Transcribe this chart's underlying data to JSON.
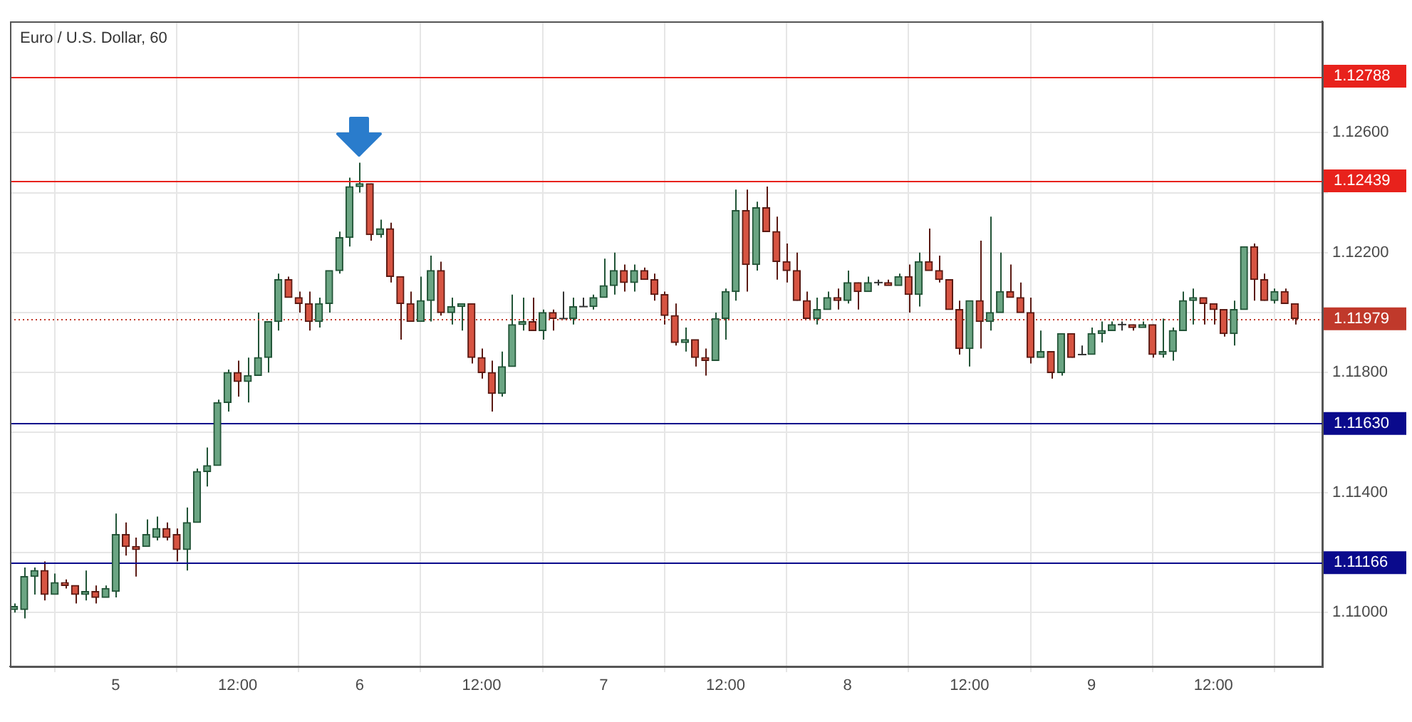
{
  "chart_data": {
    "type": "candlestick",
    "title": "Euro / U.S. Dollar, 60",
    "categories": [
      null,
      null,
      null,
      null,
      null,
      null,
      null,
      null,
      null,
      null,
      "5",
      null,
      null,
      null,
      null,
      null,
      null,
      null,
      null,
      null,
      null,
      null,
      "12:00",
      null,
      null,
      null,
      null,
      null,
      null,
      null,
      null,
      null,
      null,
      null,
      "6",
      null,
      null,
      null,
      null,
      null,
      null,
      null,
      null,
      null,
      null,
      null,
      "12:00",
      null,
      null,
      null,
      null,
      null,
      null,
      null,
      null,
      null,
      null,
      null,
      "7",
      null,
      null,
      null,
      null,
      null,
      null,
      null,
      null,
      null,
      null,
      null,
      "12:00",
      null,
      null,
      null,
      null,
      null,
      null,
      null,
      null,
      null,
      null,
      null,
      "8",
      null,
      null,
      null,
      null,
      null,
      null,
      null,
      null,
      null,
      null,
      null,
      "12:00",
      null,
      null,
      null,
      null,
      null,
      null,
      null,
      null,
      null,
      null,
      null,
      "9",
      null,
      null,
      null,
      null,
      null,
      null,
      null,
      null,
      null,
      null,
      null,
      "12:00",
      null,
      null,
      null,
      null,
      null,
      null,
      null,
      null
    ],
    "ohlc": [
      [
        1.1101,
        1.1103,
        1.11,
        1.1102
      ],
      [
        1.1101,
        1.1115,
        1.1098,
        1.1112
      ],
      [
        1.1112,
        1.1115,
        1.1106,
        1.1114
      ],
      [
        1.1114,
        1.1117,
        1.1104,
        1.1106
      ],
      [
        1.1106,
        1.1113,
        1.1106,
        1.111
      ],
      [
        1.111,
        1.1111,
        1.1108,
        1.1109
      ],
      [
        1.1109,
        1.1109,
        1.1103,
        1.1106
      ],
      [
        1.1106,
        1.1114,
        1.1104,
        1.1107
      ],
      [
        1.1107,
        1.1109,
        1.1103,
        1.1105
      ],
      [
        1.1105,
        1.1109,
        1.1105,
        1.1108
      ],
      [
        1.1107,
        1.1133,
        1.1105,
        1.1126
      ],
      [
        1.1126,
        1.113,
        1.1119,
        1.1122
      ],
      [
        1.1122,
        1.1125,
        1.1112,
        1.1121
      ],
      [
        1.1122,
        1.1131,
        1.1122,
        1.1126
      ],
      [
        1.1125,
        1.1132,
        1.1124,
        1.1128
      ],
      [
        1.1128,
        1.113,
        1.1124,
        1.1125
      ],
      [
        1.1126,
        1.1128,
        1.1117,
        1.1121
      ],
      [
        1.1121,
        1.1135,
        1.1114,
        1.113
      ],
      [
        1.113,
        1.1148,
        1.113,
        1.1147
      ],
      [
        1.1147,
        1.1155,
        1.1142,
        1.1149
      ],
      [
        1.1149,
        1.1171,
        1.1149,
        1.117
      ],
      [
        1.117,
        1.1181,
        1.1167,
        1.118
      ],
      [
        1.118,
        1.1184,
        1.1172,
        1.1177
      ],
      [
        1.1177,
        1.1185,
        1.117,
        1.1179
      ],
      [
        1.1179,
        1.12,
        1.1179,
        1.1185
      ],
      [
        1.1185,
        1.1197,
        1.118,
        1.1197
      ],
      [
        1.1197,
        1.1213,
        1.1194,
        1.1211
      ],
      [
        1.1211,
        1.1212,
        1.1205,
        1.1205
      ],
      [
        1.1205,
        1.1207,
        1.12,
        1.1203
      ],
      [
        1.1203,
        1.1207,
        1.1194,
        1.1197
      ],
      [
        1.1197,
        1.1205,
        1.1195,
        1.1203
      ],
      [
        1.1203,
        1.1214,
        1.12,
        1.1214
      ],
      [
        1.1214,
        1.1227,
        1.1213,
        1.1225
      ],
      [
        1.1225,
        1.1245,
        1.1222,
        1.1242
      ],
      [
        1.1242,
        1.125,
        1.124,
        1.1243
      ],
      [
        1.1243,
        1.1243,
        1.1224,
        1.1226
      ],
      [
        1.1226,
        1.1231,
        1.1225,
        1.1228
      ],
      [
        1.1228,
        1.123,
        1.121,
        1.1212
      ],
      [
        1.1212,
        1.1212,
        1.1191,
        1.1203
      ],
      [
        1.1203,
        1.1207,
        1.1197,
        1.1197
      ],
      [
        1.1197,
        1.1212,
        1.1197,
        1.1204
      ],
      [
        1.1204,
        1.1219,
        1.1197,
        1.1214
      ],
      [
        1.1214,
        1.1217,
        1.1199,
        1.12
      ],
      [
        1.12,
        1.1205,
        1.1196,
        1.1202
      ],
      [
        1.1202,
        1.1203,
        1.1194,
        1.1203
      ],
      [
        1.1203,
        1.1203,
        1.1183,
        1.1185
      ],
      [
        1.1185,
        1.1188,
        1.1178,
        1.118
      ],
      [
        1.118,
        1.1184,
        1.1167,
        1.1173
      ],
      [
        1.1173,
        1.1187,
        1.1172,
        1.1182
      ],
      [
        1.1182,
        1.1206,
        1.1182,
        1.1196
      ],
      [
        1.1196,
        1.1205,
        1.1194,
        1.1197
      ],
      [
        1.1197,
        1.1205,
        1.1194,
        1.1194
      ],
      [
        1.1194,
        1.1201,
        1.1191,
        1.12
      ],
      [
        1.12,
        1.1201,
        1.1194,
        1.1198
      ],
      [
        1.1198,
        1.1207,
        1.1198,
        1.1198
      ],
      [
        1.1198,
        1.1205,
        1.1196,
        1.1202
      ],
      [
        1.1202,
        1.1205,
        1.1202,
        1.1202
      ],
      [
        1.1202,
        1.1206,
        1.1201,
        1.1205
      ],
      [
        1.1205,
        1.1218,
        1.1205,
        1.1209
      ],
      [
        1.1209,
        1.122,
        1.1206,
        1.1214
      ],
      [
        1.1214,
        1.1216,
        1.1207,
        1.121
      ],
      [
        1.121,
        1.1216,
        1.1207,
        1.1214
      ],
      [
        1.1214,
        1.1215,
        1.1211,
        1.1211
      ],
      [
        1.1211,
        1.1213,
        1.1204,
        1.1206
      ],
      [
        1.1206,
        1.1207,
        1.1196,
        1.1199
      ],
      [
        1.1199,
        1.1203,
        1.1189,
        1.119
      ],
      [
        1.119,
        1.1195,
        1.1187,
        1.1191
      ],
      [
        1.1191,
        1.1191,
        1.1182,
        1.1185
      ],
      [
        1.1185,
        1.1188,
        1.1179,
        1.1184
      ],
      [
        1.1184,
        1.12,
        1.1184,
        1.1198
      ],
      [
        1.1198,
        1.1208,
        1.1191,
        1.1207
      ],
      [
        1.1207,
        1.1241,
        1.1204,
        1.1234
      ],
      [
        1.1234,
        1.1241,
        1.1207,
        1.1216
      ],
      [
        1.1216,
        1.1237,
        1.1214,
        1.1235
      ],
      [
        1.1235,
        1.1242,
        1.1227,
        1.1227
      ],
      [
        1.1227,
        1.1232,
        1.1211,
        1.1217
      ],
      [
        1.1217,
        1.1223,
        1.121,
        1.1214
      ],
      [
        1.1214,
        1.122,
        1.1204,
        1.1204
      ],
      [
        1.1204,
        1.1207,
        1.1198,
        1.1198
      ],
      [
        1.1198,
        1.1205,
        1.1196,
        1.1201
      ],
      [
        1.1201,
        1.1207,
        1.1201,
        1.1205
      ],
      [
        1.1205,
        1.1208,
        1.1201,
        1.1204
      ],
      [
        1.1204,
        1.1214,
        1.1203,
        1.121
      ],
      [
        1.121,
        1.121,
        1.1201,
        1.1207
      ],
      [
        1.1207,
        1.1212,
        1.1207,
        1.121
      ],
      [
        1.121,
        1.1211,
        1.1209,
        1.121
      ],
      [
        1.121,
        1.1211,
        1.1209,
        1.1209
      ],
      [
        1.1209,
        1.1213,
        1.1209,
        1.1212
      ],
      [
        1.1212,
        1.1216,
        1.12,
        1.1206
      ],
      [
        1.1206,
        1.122,
        1.1202,
        1.1217
      ],
      [
        1.1217,
        1.1228,
        1.1214,
        1.1214
      ],
      [
        1.1214,
        1.1219,
        1.121,
        1.1211
      ],
      [
        1.1211,
        1.1211,
        1.1201,
        1.1201
      ],
      [
        1.1201,
        1.1204,
        1.1186,
        1.1188
      ],
      [
        1.1188,
        1.1204,
        1.1182,
        1.1204
      ],
      [
        1.1204,
        1.1224,
        1.1188,
        1.1197
      ],
      [
        1.1197,
        1.1232,
        1.1194,
        1.12
      ],
      [
        1.12,
        1.122,
        1.12,
        1.1207
      ],
      [
        1.1207,
        1.1216,
        1.1205,
        1.1205
      ],
      [
        1.1205,
        1.121,
        1.12,
        1.12
      ],
      [
        1.12,
        1.1205,
        1.1183,
        1.1185
      ],
      [
        1.1185,
        1.1194,
        1.1185,
        1.1187
      ],
      [
        1.1187,
        1.1187,
        1.1178,
        1.118
      ],
      [
        1.118,
        1.1193,
        1.1179,
        1.1193
      ],
      [
        1.1193,
        1.1193,
        1.1185,
        1.1185
      ],
      [
        1.1186,
        1.1189,
        1.1186,
        1.1186
      ],
      [
        1.1186,
        1.1195,
        1.1186,
        1.1193
      ],
      [
        1.1193,
        1.1197,
        1.119,
        1.1194
      ],
      [
        1.1194,
        1.1197,
        1.1194,
        1.1196
      ],
      [
        1.1196,
        1.1197,
        1.1194,
        1.1196
      ],
      [
        1.1196,
        1.1196,
        1.1194,
        1.1195
      ],
      [
        1.1195,
        1.1197,
        1.1195,
        1.1196
      ],
      [
        1.1196,
        1.1196,
        1.1185,
        1.1186
      ],
      [
        1.1186,
        1.1198,
        1.1185,
        1.1187
      ],
      [
        1.1187,
        1.1195,
        1.1184,
        1.1194
      ],
      [
        1.1194,
        1.1207,
        1.1194,
        1.1204
      ],
      [
        1.1204,
        1.1208,
        1.1196,
        1.1205
      ],
      [
        1.1205,
        1.1205,
        1.1196,
        1.1203
      ],
      [
        1.1203,
        1.1203,
        1.1196,
        1.1201
      ],
      [
        1.1201,
        1.1201,
        1.1192,
        1.1193
      ],
      [
        1.1193,
        1.1204,
        1.1189,
        1.1201
      ],
      [
        1.1201,
        1.1222,
        1.1201,
        1.1222
      ],
      [
        1.1222,
        1.1223,
        1.1204,
        1.1211
      ],
      [
        1.1211,
        1.1213,
        1.1204,
        1.1204
      ],
      [
        1.1204,
        1.1208,
        1.1203,
        1.1207
      ],
      [
        1.1207,
        1.1208,
        1.1203,
        1.1203
      ],
      [
        1.1203,
        1.1203,
        1.1196,
        1.1198
      ]
    ],
    "ylim": [
      1.1082,
      1.12971
    ],
    "yticks": [
      {
        "value": 1.11,
        "label": "1.11000"
      },
      {
        "value": 1.112,
        "label": null
      },
      {
        "value": 1.114,
        "label": "1.11400"
      },
      {
        "value": 1.116,
        "label": null
      },
      {
        "value": 1.118,
        "label": "1.11800"
      },
      {
        "value": 1.12,
        "label": null
      },
      {
        "value": 1.122,
        "label": "1.12200"
      },
      {
        "value": 1.124,
        "label": null
      },
      {
        "value": 1.126,
        "label": "1.12600"
      }
    ],
    "ref_lines": [
      {
        "axis": "y",
        "value": 1.12788,
        "label": "1.12788",
        "color": "#e8221c",
        "line_style": "solid"
      },
      {
        "axis": "y",
        "value": 1.12439,
        "label": "1.12439",
        "color": "#e8221c",
        "line_style": "solid"
      },
      {
        "axis": "y",
        "value": 1.11979,
        "label": "1.11979",
        "color": "#c0392b",
        "line_style": "dotted"
      },
      {
        "axis": "y",
        "value": 1.1163,
        "label": "1.11630",
        "color": "#0a0a8c",
        "line_style": "solid"
      },
      {
        "axis": "y",
        "value": 1.11166,
        "label": "1.11166",
        "color": "#0a0a8c",
        "line_style": "solid"
      }
    ],
    "grid": true,
    "legend": false
  }
}
